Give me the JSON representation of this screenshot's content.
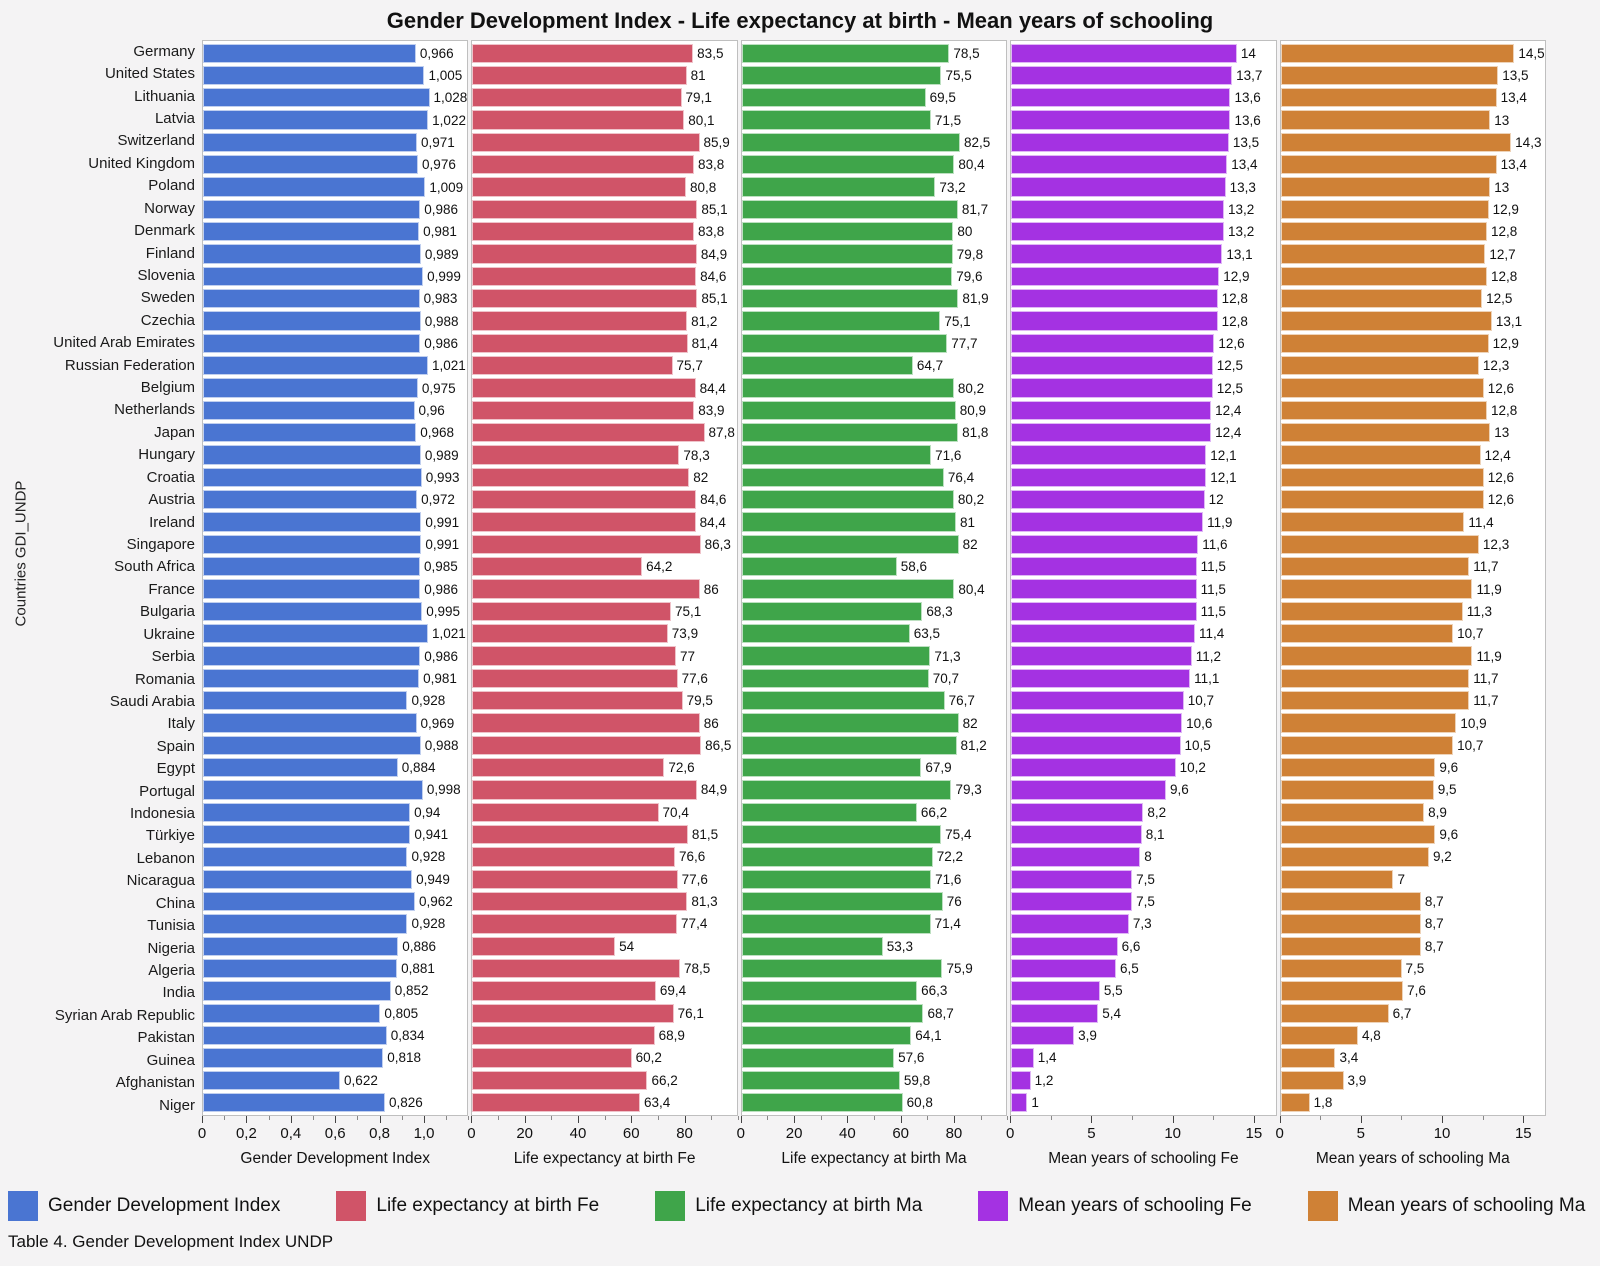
{
  "title": "Gender Development Index - Life expectancy at birth - Mean years of schooling",
  "y_axis_label": "Countries GDI_UNDP",
  "caption": "Table 4. Gender Development Index UNDP",
  "chart_data": {
    "type": "bar",
    "orientation": "horizontal",
    "grid": false,
    "legend_position": "bottom",
    "categories": [
      "Germany",
      "United States",
      "Lithuania",
      "Latvia",
      "Switzerland",
      "United Kingdom",
      "Poland",
      "Norway",
      "Denmark",
      "Finland",
      "Slovenia",
      "Sweden",
      "Czechia",
      "United Arab Emirates",
      "Russian Federation",
      "Belgium",
      "Netherlands",
      "Japan",
      "Hungary",
      "Croatia",
      "Austria",
      "Ireland",
      "Singapore",
      "South Africa",
      "France",
      "Bulgaria",
      "Ukraine",
      "Serbia",
      "Romania",
      "Saudi Arabia",
      "Italy",
      "Spain",
      "Egypt",
      "Portugal",
      "Indonesia",
      "Türkiye",
      "Lebanon",
      "Nicaragua",
      "China",
      "Tunisia",
      "Nigeria",
      "Algeria",
      "India",
      "Syrian Arab Republic",
      "Pakistan",
      "Guinea",
      "Afghanistan",
      "Niger"
    ],
    "series": [
      {
        "name": "Gender Development Index",
        "axis_label": "Gender Development Index",
        "color": "#4a75d2",
        "axis_max": 1.2,
        "tick_values": [
          0,
          0.2,
          0.4,
          0.6,
          0.8,
          1.0
        ],
        "tick_labels": [
          "0",
          "0,2",
          "0,4",
          "0,6",
          "0,8",
          "1,0"
        ],
        "minor_step": 0.1,
        "values": [
          0.966,
          1.005,
          1.028,
          1.022,
          0.971,
          0.976,
          1.009,
          0.986,
          0.981,
          0.989,
          0.999,
          0.983,
          0.988,
          0.986,
          1.021,
          0.975,
          0.96,
          0.968,
          0.989,
          0.993,
          0.972,
          0.991,
          0.991,
          0.985,
          0.986,
          0.995,
          1.021,
          0.986,
          0.981,
          0.928,
          0.969,
          0.988,
          0.884,
          0.998,
          0.94,
          0.941,
          0.928,
          0.949,
          0.962,
          0.928,
          0.886,
          0.881,
          0.852,
          0.805,
          0.834,
          0.818,
          0.622,
          0.826
        ]
      },
      {
        "name": "Life expectancy at birth Fe",
        "axis_label": "Life expectancy at birth Fe",
        "color": "#d05468",
        "axis_max": 100,
        "tick_values": [
          0,
          20,
          40,
          60,
          80
        ],
        "tick_labels": [
          "0",
          "20",
          "40",
          "60",
          "80"
        ],
        "minor_step": 10,
        "values": [
          83.5,
          81,
          79.1,
          80.1,
          85.9,
          83.8,
          80.8,
          85.1,
          83.8,
          84.9,
          84.6,
          85.1,
          81.2,
          81.4,
          75.7,
          84.4,
          83.9,
          87.8,
          78.3,
          82,
          84.6,
          84.4,
          86.3,
          64.2,
          86,
          75.1,
          73.9,
          77,
          77.6,
          79.5,
          86,
          86.5,
          72.6,
          84.9,
          70.4,
          81.5,
          76.6,
          77.6,
          81.3,
          77.4,
          54,
          78.5,
          69.4,
          76.1,
          68.9,
          60.2,
          66.2,
          63.4
        ]
      },
      {
        "name": "Life expectancy at birth Ma",
        "axis_label": "Life expectancy at birth Ma",
        "color": "#3fa54a",
        "axis_max": 100,
        "tick_values": [
          0,
          20,
          40,
          60,
          80
        ],
        "tick_labels": [
          "0",
          "20",
          "40",
          "60",
          "80"
        ],
        "minor_step": 10,
        "values": [
          78.5,
          75.5,
          69.5,
          71.5,
          82.5,
          80.4,
          73.2,
          81.7,
          80,
          79.8,
          79.6,
          81.9,
          75.1,
          77.7,
          64.7,
          80.2,
          80.9,
          81.8,
          71.6,
          76.4,
          80.2,
          81,
          82,
          58.6,
          80.4,
          68.3,
          63.5,
          71.3,
          70.7,
          76.7,
          82,
          81.2,
          67.9,
          79.3,
          66.2,
          75.4,
          72.2,
          71.6,
          76,
          71.4,
          53.3,
          75.9,
          66.3,
          68.7,
          64.1,
          57.6,
          59.8,
          60.8
        ]
      },
      {
        "name": "Mean years of schooling Fe",
        "axis_label": "Mean years of schooling Fe",
        "color": "#a432e2",
        "axis_max": 16.4,
        "tick_values": [
          0,
          5,
          10,
          15
        ],
        "tick_labels": [
          "0",
          "5",
          "10",
          "15"
        ],
        "minor_step": 2.5,
        "values": [
          14,
          13.7,
          13.6,
          13.6,
          13.5,
          13.4,
          13.3,
          13.2,
          13.2,
          13.1,
          12.9,
          12.8,
          12.8,
          12.6,
          12.5,
          12.5,
          12.4,
          12.4,
          12.1,
          12.1,
          12,
          11.9,
          11.6,
          11.5,
          11.5,
          11.5,
          11.4,
          11.2,
          11.1,
          10.7,
          10.6,
          10.5,
          10.2,
          9.6,
          8.2,
          8.1,
          8,
          7.5,
          7.5,
          7.3,
          6.6,
          6.5,
          5.5,
          5.4,
          3.9,
          1.4,
          1.2,
          1
        ]
      },
      {
        "name": "Mean years of schooling Ma",
        "axis_label": "Mean years of schooling Ma",
        "color": "#cf8136",
        "axis_max": 16.4,
        "tick_values": [
          0,
          5,
          10,
          15
        ],
        "tick_labels": [
          "0",
          "5",
          "10",
          "15"
        ],
        "minor_step": 2.5,
        "values": [
          14.5,
          13.5,
          13.4,
          13,
          14.3,
          13.4,
          13,
          12.9,
          12.8,
          12.7,
          12.8,
          12.5,
          13.1,
          12.9,
          12.3,
          12.6,
          12.8,
          13,
          12.4,
          12.6,
          12.6,
          11.4,
          12.3,
          11.7,
          11.9,
          11.3,
          10.7,
          11.9,
          11.7,
          11.7,
          10.9,
          10.7,
          9.6,
          9.5,
          8.9,
          9.6,
          9.2,
          7,
          8.7,
          8.7,
          8.7,
          7.5,
          7.6,
          6.7,
          4.8,
          3.4,
          3.9,
          1.8
        ]
      }
    ],
    "legend": [
      {
        "label": "Gender Development Index",
        "color": "#4a75d2"
      },
      {
        "label": "Life expectancy at birth Fe",
        "color": "#d05468"
      },
      {
        "label": "Life expectancy at birth Ma",
        "color": "#3fa54a"
      },
      {
        "label": "Mean years of schooling Fe",
        "color": "#a432e2"
      },
      {
        "label": "Mean years of schooling Ma",
        "color": "#cf8136"
      }
    ],
    "decimal_separator": ","
  }
}
